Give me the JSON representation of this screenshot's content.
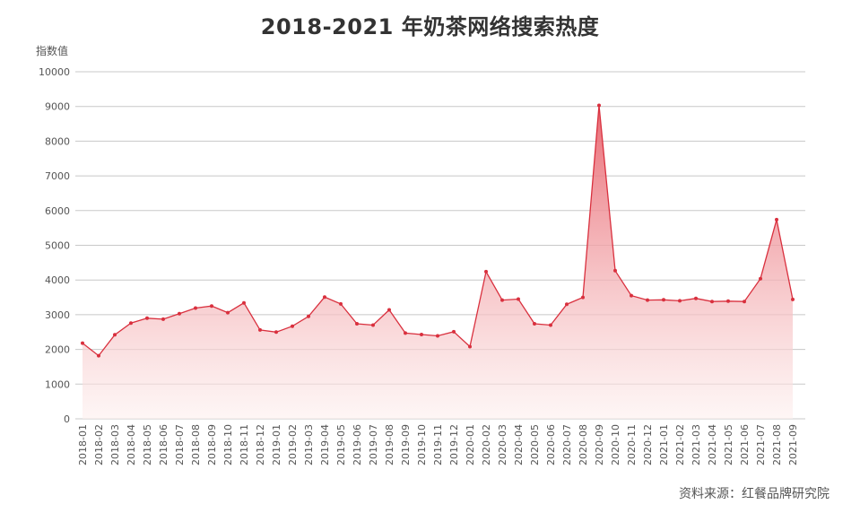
{
  "title": "2018-2021 年奶茶网络搜索热度",
  "ylabel": "指数值",
  "source": "资料来源：红餐品牌研究院",
  "colors": {
    "line": "#d9303e",
    "fill_top": "#e8636d",
    "fill_bottom": "#fdf0ef",
    "grid": "#c8c8c8"
  },
  "chart_data": {
    "type": "area",
    "ylabel": "指数值",
    "ylim": [
      0,
      10000
    ],
    "yticks": [
      "0",
      "1000",
      "2000",
      "3000",
      "4000",
      "5000",
      "6000",
      "7000",
      "8000",
      "9000",
      "10000"
    ],
    "grid": true,
    "legend": "none",
    "categories": [
      "2018-01",
      "2018-02",
      "2018-03",
      "2018-04",
      "2018-05",
      "2018-06",
      "2018-07",
      "2018-08",
      "2018-09",
      "2018-10",
      "2018-11",
      "2018-12",
      "2019-01",
      "2019-02",
      "2019-03",
      "2019-04",
      "2019-05",
      "2019-06",
      "2019-07",
      "2019-08",
      "2019-09",
      "2019-10",
      "2019-11",
      "2019-12",
      "2020-01",
      "2020-02",
      "2020-03",
      "2020-04",
      "2020-05",
      "2020-06",
      "2020-07",
      "2020-08",
      "2020-09",
      "2020-10",
      "2020-11",
      "2020-12",
      "2021-01",
      "2021-02",
      "2021-03",
      "2021-04",
      "2021-05",
      "2021-06",
      "2021-07",
      "2021-08",
      "2021-09"
    ],
    "values": [
      2180,
      1820,
      2420,
      2760,
      2900,
      2870,
      3030,
      3190,
      3250,
      3060,
      3340,
      2560,
      2500,
      2670,
      2950,
      3510,
      3310,
      2740,
      2700,
      3140,
      2470,
      2430,
      2390,
      2510,
      2080,
      4240,
      3420,
      3450,
      2740,
      2700,
      3300,
      3500,
      9030,
      4270,
      3550,
      3420,
      3430,
      3400,
      3470,
      3380,
      3390,
      3380,
      4040,
      5740,
      3440
    ]
  }
}
